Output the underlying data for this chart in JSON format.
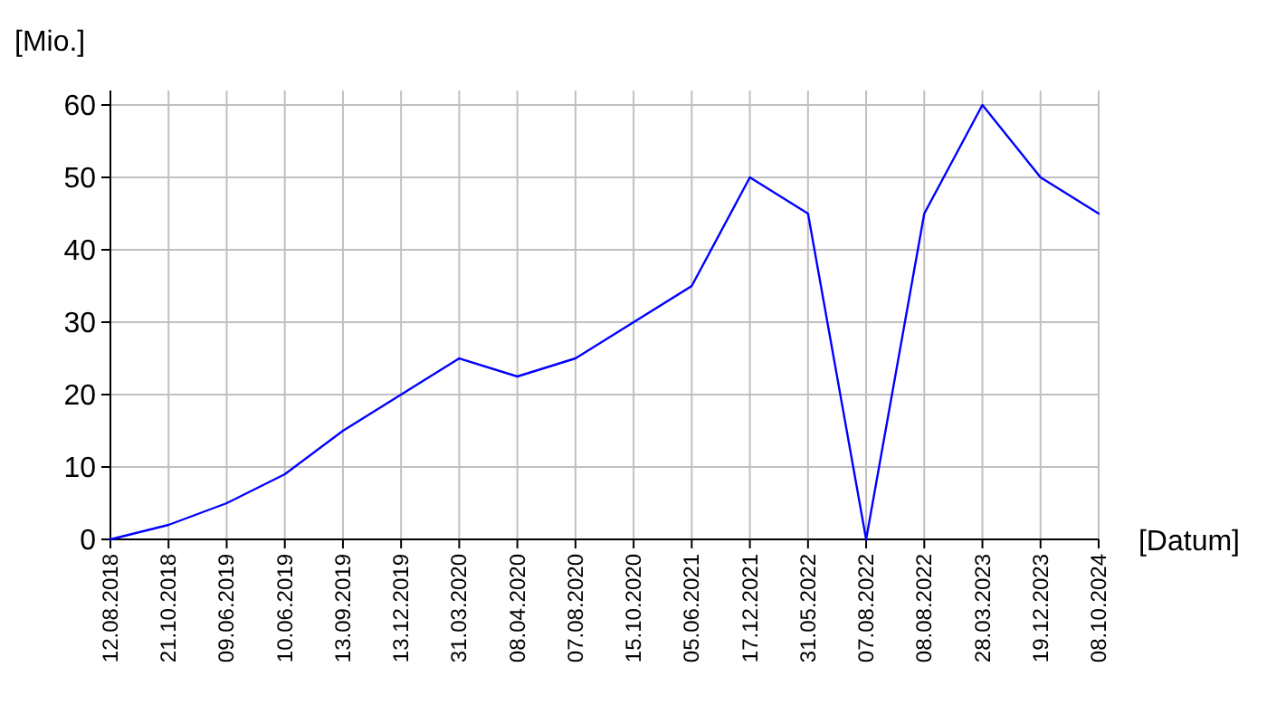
{
  "chart_data": {
    "type": "line",
    "xlabel": "[Datum]",
    "ylabel": "[Mio.]",
    "categories": [
      "12.08.2018",
      "21.10.2018",
      "09.06.2019",
      "10.06.2019",
      "13.09.2019",
      "13.12.2019",
      "31.03.2020",
      "08.04.2020",
      "07.08.2020",
      "15.10.2020",
      "05.06.2021",
      "17.12.2021",
      "31.05.2022",
      "07.08.2022",
      "08.08.2022",
      "28.03.2023",
      "19.12.2023",
      "08.10.2024"
    ],
    "series": [
      {
        "color": "#0000ff",
        "values": [
          0,
          2,
          5,
          9,
          15,
          20,
          25,
          22.5,
          25,
          30,
          35,
          50,
          45,
          0,
          45,
          60,
          50,
          45
        ]
      }
    ],
    "ylim": [
      0,
      60
    ],
    "yticks": [
      0,
      10,
      20,
      30,
      40,
      50,
      60
    ],
    "grid": true,
    "marker": "none",
    "line_style": "solid"
  }
}
